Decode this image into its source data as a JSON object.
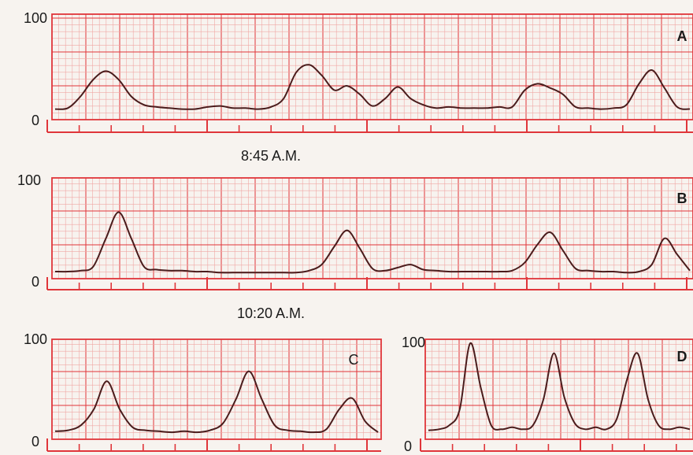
{
  "colors": {
    "paper": "#f7f3ef",
    "grid_major": "#e0353a",
    "grid_minor": "#f0a7a4",
    "trace": "#4a1c1c",
    "text": "#1a1a1a"
  },
  "chart_data": [
    {
      "type": "line",
      "panel_label": "A",
      "ylim": [
        0,
        100
      ],
      "y_ticks": [
        "100",
        "0"
      ],
      "time_caption": "8:45 A.M.",
      "grid": true,
      "series": [
        {
          "x": [
            0,
            4,
            8,
            12,
            16,
            20,
            24,
            28,
            32,
            36,
            40,
            44,
            48,
            52,
            56,
            60,
            64,
            68,
            72,
            76,
            80,
            84,
            88,
            92,
            96,
            100,
            104,
            108,
            112,
            116,
            120,
            124,
            128,
            132,
            136,
            140,
            144,
            148,
            152,
            156,
            160,
            164,
            168,
            172,
            176,
            180,
            184,
            188,
            192,
            196,
            200
          ],
          "y": [
            10,
            11,
            22,
            38,
            46,
            38,
            22,
            14,
            12,
            11,
            10,
            10,
            12,
            13,
            11,
            11,
            10,
            12,
            20,
            45,
            52,
            42,
            28,
            32,
            24,
            13,
            20,
            31,
            20,
            14,
            11,
            12,
            11,
            11,
            11,
            12,
            12,
            28,
            34,
            30,
            24,
            12,
            11,
            10,
            11,
            14,
            34,
            47,
            30,
            12,
            10
          ]
        }
      ]
    },
    {
      "type": "line",
      "panel_label": "B",
      "ylim": [
        0,
        100
      ],
      "y_ticks": [
        "100",
        "0"
      ],
      "time_caption": "10:20 A.M.",
      "grid": true,
      "series": [
        {
          "x": [
            0,
            4,
            8,
            12,
            16,
            20,
            24,
            28,
            32,
            36,
            40,
            44,
            48,
            52,
            56,
            60,
            64,
            68,
            72,
            76,
            80,
            84,
            88,
            92,
            96,
            100,
            104,
            108,
            112,
            116,
            120,
            124,
            128,
            132,
            136,
            140,
            144,
            148,
            152,
            156,
            160,
            164,
            168,
            172,
            176,
            180,
            184,
            188,
            192,
            196,
            200
          ],
          "y": [
            7,
            7,
            8,
            12,
            40,
            66,
            40,
            12,
            9,
            8,
            8,
            7,
            7,
            6,
            6,
            6,
            6,
            6,
            6,
            6,
            8,
            14,
            32,
            48,
            30,
            10,
            8,
            11,
            14,
            9,
            8,
            7,
            7,
            7,
            7,
            7,
            8,
            16,
            34,
            46,
            28,
            10,
            8,
            7,
            7,
            6,
            7,
            14,
            40,
            24,
            8
          ]
        }
      ]
    },
    {
      "type": "line",
      "panel_label": "C",
      "ylim": [
        0,
        100
      ],
      "y_ticks": [
        "100",
        "0"
      ],
      "grid": true,
      "series": [
        {
          "x": [
            0,
            4,
            8,
            12,
            16,
            20,
            24,
            28,
            32,
            36,
            40,
            44,
            48,
            52,
            56,
            60,
            64,
            68,
            72,
            76,
            80,
            84,
            88,
            92,
            96,
            100
          ],
          "y": [
            8,
            9,
            14,
            30,
            58,
            30,
            12,
            9,
            8,
            7,
            8,
            7,
            9,
            16,
            40,
            68,
            40,
            14,
            9,
            8,
            7,
            10,
            30,
            41,
            18,
            7
          ]
        }
      ]
    },
    {
      "type": "line",
      "panel_label": "D",
      "ylim": [
        0,
        100
      ],
      "y_ticks": [
        "100",
        "0"
      ],
      "grid": true,
      "series": [
        {
          "x": [
            0,
            4,
            8,
            12,
            16,
            20,
            24,
            28,
            32,
            36,
            40,
            44,
            48,
            52,
            56,
            60,
            64,
            68,
            72,
            76,
            80,
            84,
            88,
            92,
            96,
            100
          ],
          "y": [
            9,
            10,
            14,
            30,
            96,
            52,
            14,
            10,
            12,
            10,
            14,
            40,
            86,
            42,
            16,
            10,
            12,
            10,
            20,
            60,
            86,
            40,
            14,
            10,
            12,
            10
          ]
        }
      ]
    }
  ]
}
